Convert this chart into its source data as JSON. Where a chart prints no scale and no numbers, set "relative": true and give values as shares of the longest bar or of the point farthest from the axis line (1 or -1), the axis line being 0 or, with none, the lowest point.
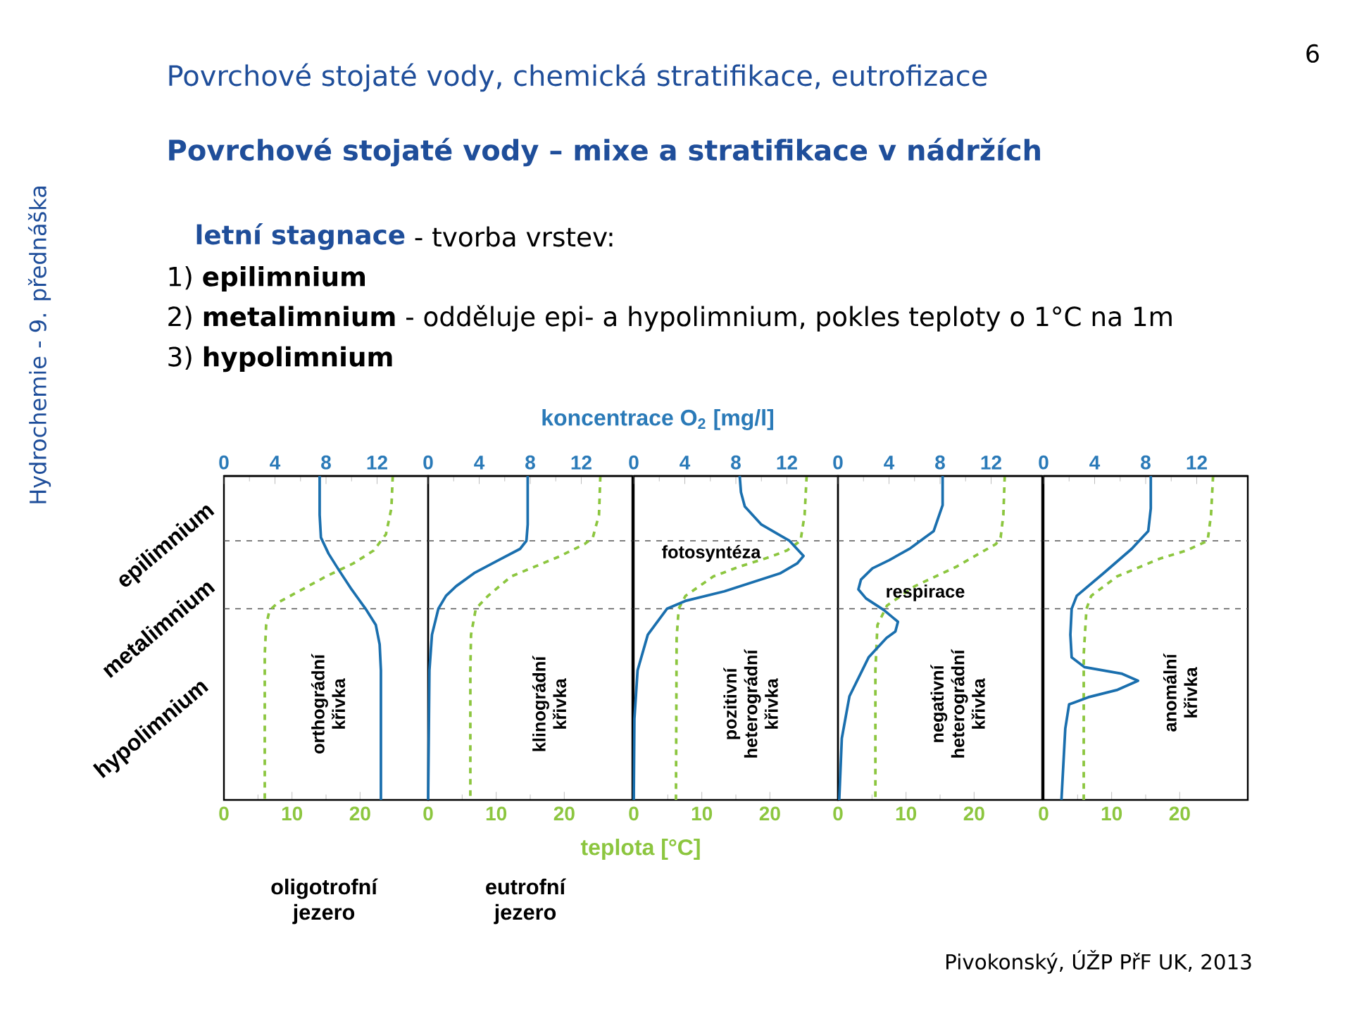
{
  "chart_data": [
    {
      "type": "line",
      "title": "Povrchové stojaté vody, chemická stratifikace, eutrofizace",
      "subtitle": "Povrchové stojaté vody – mixe a stratifikace v nádržích",
      "xlim": [
        0,
        30
      ],
      "xticks": [
        0,
        10,
        20
      ],
      "x2lim": [
        0,
        16
      ],
      "x2ticks": [
        0,
        4,
        8,
        12
      ],
      "relative": true,
      "tick_labels": "x",
      "ref_lines": [
        {
          "axis": "y",
          "value": -0.2,
          "color": "#555555",
          "line_style": "dashed"
        },
        {
          "axis": "y",
          "value": -0.41,
          "color": "#555555",
          "line_style": "dashed"
        }
      ],
      "series": [
        {
          "color": "#1a6fae",
          "axis": "x2",
          "x": [
            7.5,
            7.5,
            7.6,
            8.2,
            9.0,
            10.0,
            11.1,
            11.9,
            12.2,
            12.3,
            12.3
          ],
          "values": [
            0,
            -0.12,
            -0.19,
            -0.24,
            -0.29,
            -0.35,
            -0.41,
            -0.46,
            -0.52,
            -0.6,
            -1
          ]
        },
        {
          "color": "#8cc63f",
          "line_style": "dashed",
          "x": [
            24.8,
            24.6,
            23.8,
            22,
            19,
            15,
            11,
            8,
            6.7,
            6.2,
            6.0,
            6.0
          ],
          "values": [
            0,
            -0.1,
            -0.18,
            -0.23,
            -0.27,
            -0.31,
            -0.356,
            -0.39,
            -0.415,
            -0.46,
            -0.55,
            -1
          ]
        }
      ],
      "annotations": [
        "orthográdní křivka",
        "oligotrofní jezero",
        "epilimnium",
        "metalimnium",
        "hypolimnium",
        "letní stagnace",
        "- tvorba vrstev:",
        "1) **epilimnium**",
        "2) **metalimnium** - odděluje epi- a hypolimnium, pokles teploty o 1°C na 1m",
        "3) **hypolimnium**",
        "Hydrochemie - 9. přednáška",
        "6",
        "Pivokonský, ÚŽP PřF UK, 2013"
      ]
    },
    {
      "type": "line",
      "xlim": [
        0,
        30
      ],
      "xticks": [
        0,
        10,
        20
      ],
      "x2lim": [
        0,
        16
      ],
      "x2ticks": [
        0,
        4,
        8,
        12
      ],
      "relative": true,
      "tick_labels": "x",
      "ref_lines": [
        {
          "axis": "y",
          "value": -0.2,
          "color": "#555555",
          "line_style": "dashed"
        },
        {
          "axis": "y",
          "value": -0.41,
          "color": "#555555",
          "line_style": "dashed"
        }
      ],
      "series": [
        {
          "color": "#1a6fae",
          "axis": "x2",
          "x": [
            7.8,
            7.8,
            7.7,
            7.2,
            5.5,
            3.6,
            2.2,
            1.4,
            0.8,
            0.3,
            0.1,
            0
          ],
          "values": [
            0,
            -0.15,
            -0.2,
            -0.225,
            -0.26,
            -0.3,
            -0.34,
            -0.37,
            -0.41,
            -0.49,
            -0.6,
            -1
          ]
        },
        {
          "color": "#8cc63f",
          "line_style": "dashed",
          "x": [
            25.3,
            25.1,
            24.2,
            23,
            19.1,
            12.2,
            8.8,
            7.0,
            6.3,
            6.2,
            6.2
          ],
          "values": [
            0,
            -0.12,
            -0.19,
            -0.21,
            -0.25,
            -0.31,
            -0.37,
            -0.41,
            -0.49,
            -0.6,
            -1
          ]
        }
      ],
      "annotations": [
        "klinográdní křivka",
        "eutrofní jezero"
      ]
    },
    {
      "type": "line",
      "xlabel": "teplota [°C]",
      "x2label": "koncentrace O$_{2}$ [mg/l]",
      "xlim": [
        0,
        30
      ],
      "xticks": [
        0,
        10,
        20
      ],
      "x2lim": [
        0,
        16
      ],
      "x2ticks": [
        0,
        4,
        8,
        12
      ],
      "relative": true,
      "tick_labels": "x",
      "ref_lines": [
        {
          "axis": "y",
          "value": -0.2,
          "color": "#555555",
          "line_style": "dashed"
        },
        {
          "axis": "y",
          "value": -0.41,
          "color": "#555555",
          "line_style": "dashed"
        }
      ],
      "series": [
        {
          "color": "#1a6fae",
          "axis": "x2",
          "x": [
            8.3,
            8.4,
            8.7,
            10.0,
            12.2,
            13.3,
            12.8,
            11.5,
            7.1,
            4.1,
            2.6,
            1.1,
            0.3,
            0.05,
            0
          ],
          "values": [
            0,
            -0.05,
            -0.094,
            -0.15,
            -0.2,
            -0.247,
            -0.27,
            -0.3,
            -0.356,
            -0.385,
            -0.41,
            -0.49,
            -0.6,
            -0.75,
            -1
          ]
        },
        {
          "color": "#8cc63f",
          "line_style": "dashed",
          "x": [
            25.4,
            25.1,
            24.5,
            22.5,
            20,
            15.5,
            11.7,
            7.6,
            6.6,
            6.3,
            6.2
          ],
          "values": [
            0,
            -0.12,
            -0.2,
            -0.23,
            -0.25,
            -0.28,
            -0.31,
            -0.37,
            -0.41,
            -0.5,
            -1
          ]
        }
      ],
      "annotations": [
        "pozitivní heterográdní křivka",
        "fotosyntéza"
      ]
    },
    {
      "type": "line",
      "xlim": [
        0,
        30
      ],
      "xticks": [
        0,
        10,
        20
      ],
      "x2lim": [
        0,
        16
      ],
      "x2ticks": [
        0,
        4,
        8,
        12
      ],
      "relative": true,
      "tick_labels": "x",
      "ref_lines": [
        {
          "axis": "y",
          "value": -0.2,
          "color": "#555555",
          "line_style": "dashed"
        },
        {
          "axis": "y",
          "value": -0.41,
          "color": "#555555",
          "line_style": "dashed"
        }
      ],
      "series": [
        {
          "color": "#1a6fae",
          "axis": "x2",
          "x": [
            8.2,
            8.2,
            7.5,
            5.6,
            4.0,
            2.7,
            1.8,
            1.6,
            2.2,
            3.6,
            4.7,
            4.5,
            3.8,
            2.4,
            0.9,
            0.3,
            0.1
          ],
          "values": [
            0,
            -0.09,
            -0.17,
            -0.225,
            -0.26,
            -0.285,
            -0.32,
            -0.35,
            -0.378,
            -0.414,
            -0.45,
            -0.48,
            -0.5,
            -0.56,
            -0.68,
            -0.81,
            -1
          ]
        },
        {
          "color": "#8cc63f",
          "line_style": "dashed",
          "x": [
            24.5,
            24.3,
            23.9,
            23.2,
            17.4,
            11.3,
            7.2,
            5.8,
            5.5,
            5.5
          ],
          "values": [
            0,
            -0.12,
            -0.19,
            -0.21,
            -0.28,
            -0.34,
            -0.4,
            -0.46,
            -0.6,
            -1
          ]
        }
      ],
      "annotations": [
        "negativní heterográdní křivka",
        "respirace"
      ]
    },
    {
      "type": "line",
      "xlim": [
        0,
        30
      ],
      "xticks": [
        0,
        10,
        20
      ],
      "x2lim": [
        0,
        16
      ],
      "x2ticks": [
        0,
        4,
        8,
        12
      ],
      "relative": true,
      "tick_labels": "x",
      "ref_lines": [
        {
          "axis": "y",
          "value": -0.2,
          "color": "#555555",
          "line_style": "dashed"
        },
        {
          "axis": "y",
          "value": -0.41,
          "color": "#555555",
          "line_style": "dashed"
        }
      ],
      "series": [
        {
          "color": "#1a6fae",
          "axis": "x2",
          "x": [
            8.4,
            8.4,
            8.2,
            6.9,
            4.7,
            2.6,
            2.2,
            2.1,
            2.2,
            3.2,
            6.1,
            7.4,
            5.8,
            3.5,
            2.0,
            1.7,
            1.4
          ],
          "values": [
            0,
            -0.1,
            -0.17,
            -0.225,
            -0.3,
            -0.37,
            -0.41,
            -0.49,
            -0.56,
            -0.59,
            -0.61,
            -0.632,
            -0.66,
            -0.683,
            -0.705,
            -0.78,
            -1
          ]
        },
        {
          "color": "#8cc63f",
          "line_style": "dashed",
          "x": [
            24.9,
            24.6,
            24.1,
            21,
            17.1,
            10.8,
            7.0,
            6.3,
            5.9,
            5.9
          ],
          "values": [
            0,
            -0.12,
            -0.2,
            -0.23,
            -0.255,
            -0.31,
            -0.37,
            -0.41,
            -0.55,
            -1
          ]
        }
      ],
      "annotations": [
        "anomální křivka"
      ]
    }
  ]
}
